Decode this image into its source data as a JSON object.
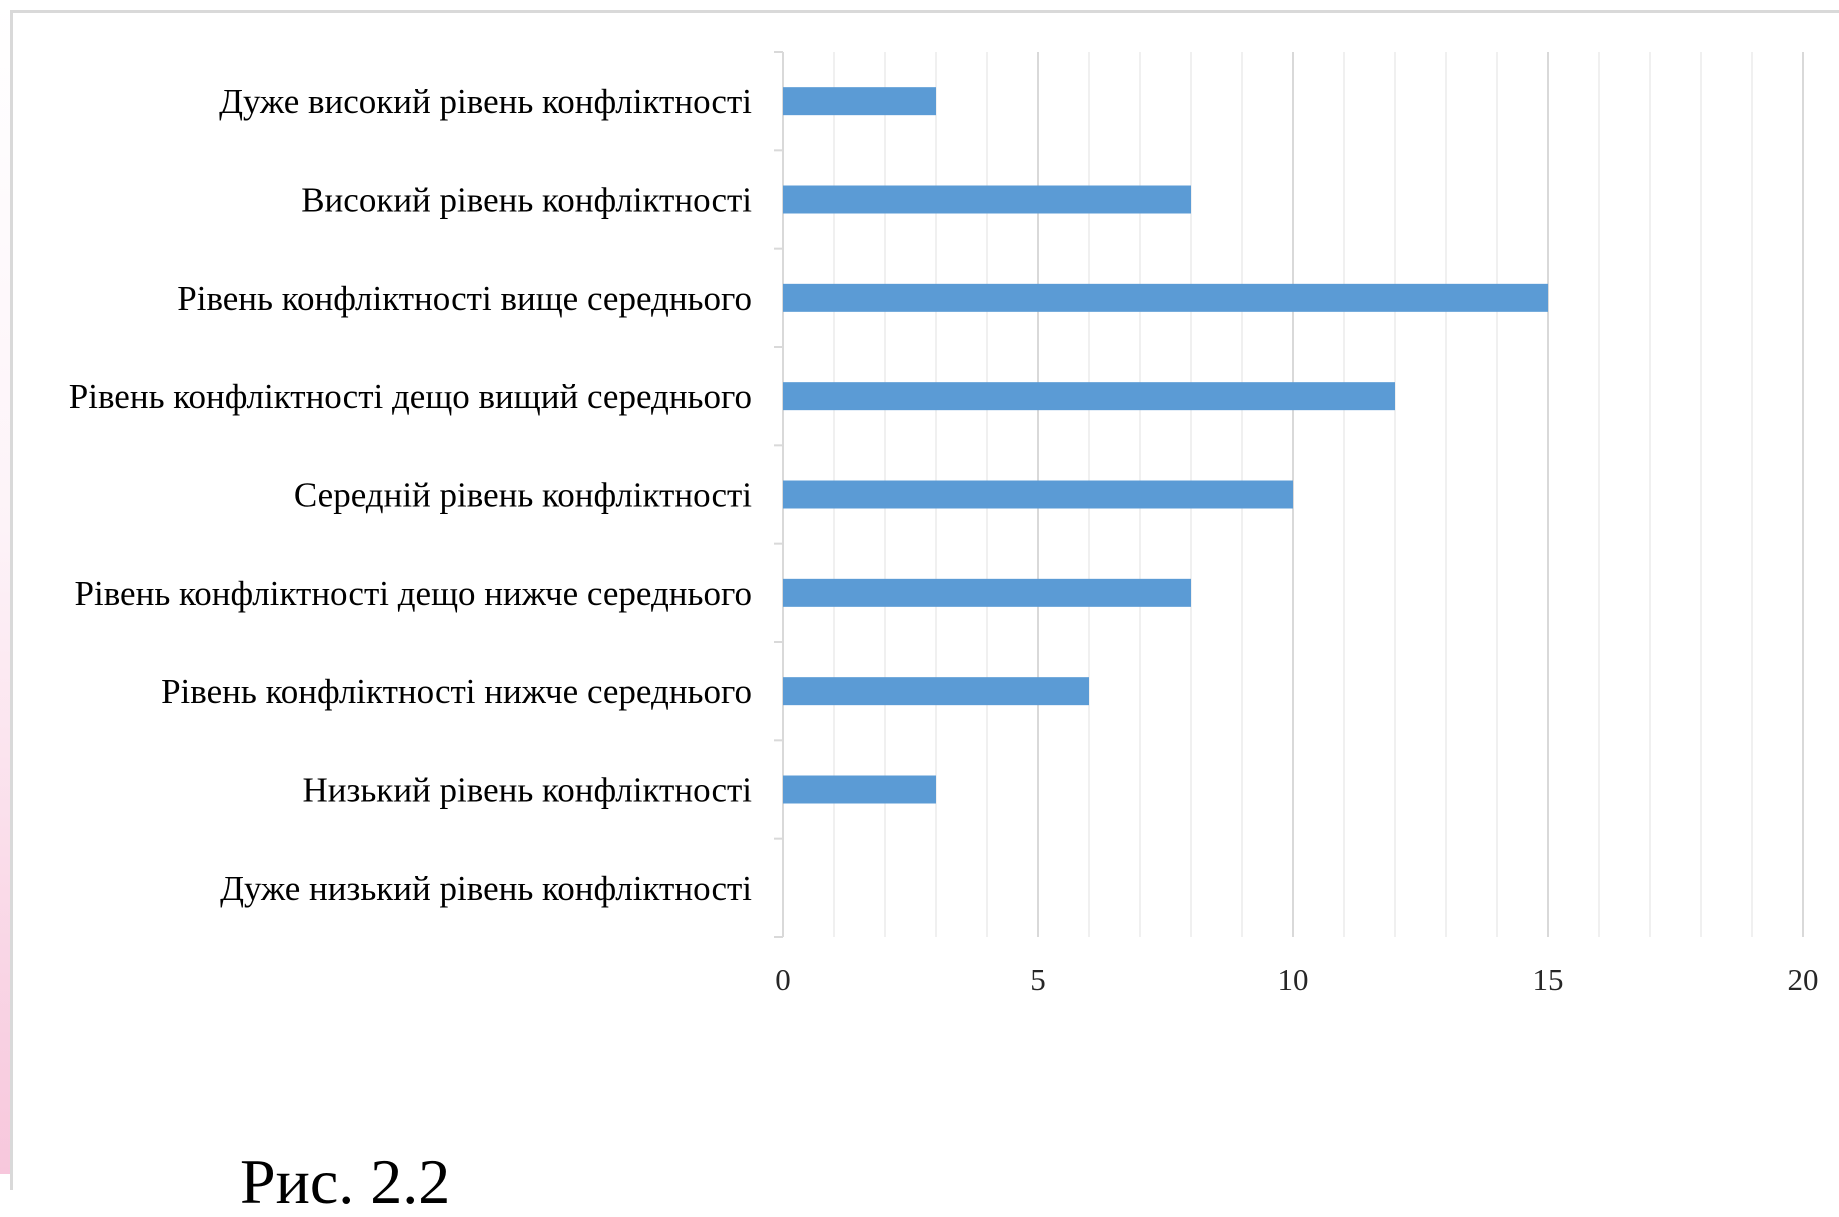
{
  "caption": "Рис. 2.2",
  "chart_data": {
    "type": "bar",
    "orientation": "horizontal",
    "categories": [
      "Дуже високий рівень конфліктності",
      "Високий рівень конфліктності",
      "Рівень конфліктності вище середнього",
      "Рівень конфліктності дещо вищий середнього",
      "Середній рівень конфліктності",
      "Рівень конфліктності дещо нижче середнього",
      "Рівень конфліктності нижче середнього",
      "Низький рівень конфліктності",
      "Дуже низький рівень конфліктності"
    ],
    "values": [
      3,
      8,
      15,
      12,
      10,
      8,
      6,
      3,
      0
    ],
    "xlim": [
      0,
      20
    ],
    "xticks": [
      "0",
      "5",
      "10",
      "15",
      "20"
    ],
    "minor_gridlines": true,
    "legend": "none",
    "bar_color": "#5b9bd5",
    "gridline_color": "#d9d9d9"
  }
}
